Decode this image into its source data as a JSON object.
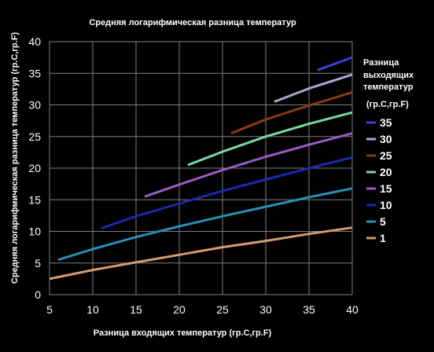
{
  "chart_data": {
    "type": "line",
    "title": "Средняя логарифмическая разница температур",
    "xlabel": "Разница входящих температур  (гр.C,гр.F)",
    "ylabel": "Средняя логарифмическая разница температур (гр.C,гр.F)",
    "xlim": [
      5,
      40
    ],
    "ylim": [
      0,
      40
    ],
    "xticks": [
      "5",
      "10",
      "15",
      "20",
      "25",
      "30",
      "35",
      "40"
    ],
    "yticks": [
      "0",
      "5",
      "10",
      "15",
      "20",
      "25",
      "30",
      "35",
      "40"
    ],
    "grid": true,
    "background": "#000000",
    "grid_color": "#808080",
    "legend_placement": "right",
    "legend_title": [
      "Разница",
      "выходящих",
      "температур",
      "(гр.C,гр.F)"
    ],
    "series": [
      {
        "name": "35",
        "color": "#4a3ad8",
        "x": [
          36,
          38,
          40
        ],
        "y": [
          35.5,
          36.5,
          37.5
        ]
      },
      {
        "name": "30",
        "color": "#a8a8d8",
        "x": [
          31,
          35,
          40
        ],
        "y": [
          30.5,
          32.6,
          34.8
        ]
      },
      {
        "name": "25",
        "color": "#8a3a14",
        "x": [
          26,
          30,
          35,
          40
        ],
        "y": [
          25.5,
          27.7,
          29.9,
          32.0
        ]
      },
      {
        "name": "20",
        "color": "#7ad8a8",
        "x": [
          21,
          25,
          30,
          35,
          40
        ],
        "y": [
          20.5,
          22.6,
          25.0,
          27.0,
          28.8
        ]
      },
      {
        "name": "15",
        "color": "#9a5ac8",
        "x": [
          16,
          20,
          25,
          30,
          35,
          40
        ],
        "y": [
          15.5,
          17.4,
          19.7,
          21.8,
          23.7,
          25.5
        ]
      },
      {
        "name": "10",
        "color": "#1a2aa8",
        "x": [
          11,
          15,
          20,
          25,
          30,
          35,
          40
        ],
        "y": [
          10.5,
          12.4,
          14.4,
          16.4,
          18.2,
          20.0,
          21.7
        ]
      },
      {
        "name": "5",
        "color": "#2890b8",
        "x": [
          6,
          10,
          15,
          20,
          25,
          30,
          35,
          40
        ],
        "y": [
          5.5,
          7.2,
          9.1,
          10.8,
          12.4,
          13.9,
          15.4,
          16.8
        ]
      },
      {
        "name": "1",
        "color": "#d89a70",
        "x": [
          5,
          10,
          15,
          20,
          25,
          30,
          35,
          40
        ],
        "y": [
          2.5,
          3.9,
          5.1,
          6.3,
          7.5,
          8.5,
          9.6,
          10.6
        ]
      }
    ]
  }
}
